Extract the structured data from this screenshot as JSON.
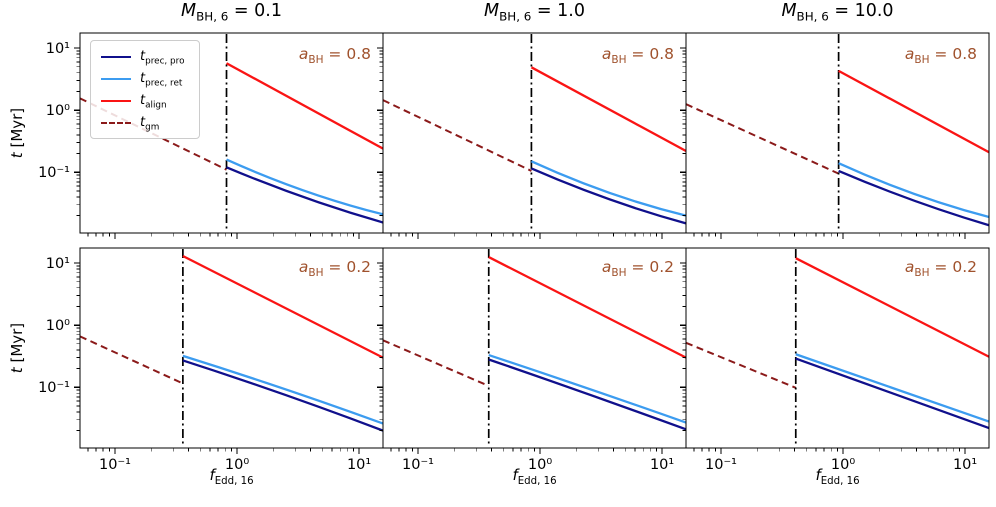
{
  "chart_data": {
    "type": "line",
    "grid": false,
    "scale": "log-log",
    "xlim": [
      0.0517,
      15.7
    ],
    "ylim": [
      0.0105,
      17.5
    ],
    "xlabel": {
      "var": "f",
      "sub": "Edd, 16"
    },
    "ylabel": {
      "var": "t",
      "rest": " [Myr]"
    },
    "x_ticks": [
      {
        "v": 0.1,
        "label": "10⁻¹"
      },
      {
        "v": 1,
        "label": "10⁰"
      },
      {
        "v": 10,
        "label": "10¹"
      }
    ],
    "y_ticks": [
      {
        "v": 10,
        "label": "10¹"
      },
      {
        "v": 1,
        "label": "10⁰"
      },
      {
        "v": 0.1,
        "label": "10⁻¹"
      }
    ],
    "colors": {
      "prec_pro": "#10108c",
      "prec_ret": "#3c9cf0",
      "align": "#fa1414",
      "gm": "#8b1a1a",
      "guide": "#000000",
      "annotation": "#a0522d"
    },
    "panels": [
      {
        "row": 0,
        "col": 0,
        "title": {
          "var": "M",
          "sub": "BH, 6",
          "rest": " = 0.1"
        },
        "annotation": {
          "var": "a",
          "sub": "BH",
          "rest": " = 0.8"
        },
        "guide_x": 0.82,
        "series": {
          "gm": {
            "x": [
              0.0517,
              0.82
            ],
            "y": [
              1.55,
              0.11
            ]
          },
          "align": {
            "x": [
              0.82,
              15.7
            ],
            "y": [
              5.7,
              0.24
            ]
          },
          "prec_ret": {
            "x": [
              0.82,
              3.6,
              15.7
            ],
            "y": [
              0.16,
              0.05,
              0.021
            ]
          },
          "prec_pro": {
            "x": [
              0.82,
              3.6,
              15.7
            ],
            "y": [
              0.12,
              0.039,
              0.0155
            ]
          }
        }
      },
      {
        "row": 0,
        "col": 1,
        "title": {
          "var": "M",
          "sub": "BH, 6",
          "rest": " = 1.0"
        },
        "annotation": {
          "var": "a",
          "sub": "BH",
          "rest": " = 0.8"
        },
        "guide_x": 0.85,
        "series": {
          "gm": {
            "x": [
              0.0517,
              0.85
            ],
            "y": [
              1.45,
              0.105
            ]
          },
          "align": {
            "x": [
              0.85,
              15.7
            ],
            "y": [
              4.9,
              0.22
            ]
          },
          "prec_ret": {
            "x": [
              0.85,
              3.65,
              15.7
            ],
            "y": [
              0.15,
              0.047,
              0.02
            ]
          },
          "prec_pro": {
            "x": [
              0.85,
              3.65,
              15.7
            ],
            "y": [
              0.115,
              0.037,
              0.015
            ]
          }
        }
      },
      {
        "row": 0,
        "col": 2,
        "title": {
          "var": "M",
          "sub": "BH, 6",
          "rest": " = 10.0"
        },
        "annotation": {
          "var": "a",
          "sub": "BH",
          "rest": " = 0.8"
        },
        "guide_x": 0.92,
        "series": {
          "gm": {
            "x": [
              0.0517,
              0.92
            ],
            "y": [
              1.25,
              0.095
            ]
          },
          "align": {
            "x": [
              0.92,
              15.7
            ],
            "y": [
              4.3,
              0.21
            ]
          },
          "prec_ret": {
            "x": [
              0.92,
              3.8,
              15.7
            ],
            "y": [
              0.14,
              0.045,
              0.019
            ]
          },
          "prec_pro": {
            "x": [
              0.92,
              3.8,
              15.7
            ],
            "y": [
              0.105,
              0.035,
              0.014
            ]
          }
        }
      },
      {
        "row": 1,
        "col": 0,
        "title": null,
        "annotation": {
          "var": "a",
          "sub": "BH",
          "rest": " = 0.2"
        },
        "guide_x": 0.36,
        "series": {
          "gm": {
            "x": [
              0.0517,
              0.36
            ],
            "y": [
              0.66,
              0.115
            ]
          },
          "align": {
            "x": [
              0.36,
              15.7
            ],
            "y": [
              13.0,
              0.3
            ]
          },
          "prec_ret": {
            "x": [
              0.36,
              2.4,
              15.7
            ],
            "y": [
              0.32,
              0.095,
              0.026
            ]
          },
          "prec_pro": {
            "x": [
              0.36,
              2.4,
              15.7
            ],
            "y": [
              0.27,
              0.077,
              0.02
            ]
          }
        }
      },
      {
        "row": 1,
        "col": 1,
        "title": null,
        "annotation": {
          "var": "a",
          "sub": "BH",
          "rest": " = 0.2"
        },
        "guide_x": 0.38,
        "series": {
          "gm": {
            "x": [
              0.0517,
              0.38
            ],
            "y": [
              0.57,
              0.105
            ]
          },
          "align": {
            "x": [
              0.38,
              15.7
            ],
            "y": [
              12.5,
              0.3
            ]
          },
          "prec_ret": {
            "x": [
              0.38,
              2.45,
              15.7
            ],
            "y": [
              0.33,
              0.096,
              0.027
            ]
          },
          "prec_pro": {
            "x": [
              0.38,
              2.45,
              15.7
            ],
            "y": [
              0.28,
              0.078,
              0.021
            ]
          }
        }
      },
      {
        "row": 1,
        "col": 2,
        "title": null,
        "annotation": {
          "var": "a",
          "sub": "BH",
          "rest": " = 0.2"
        },
        "guide_x": 0.41,
        "series": {
          "gm": {
            "x": [
              0.0517,
              0.41
            ],
            "y": [
              0.52,
              0.098
            ]
          },
          "align": {
            "x": [
              0.41,
              15.7
            ],
            "y": [
              12.0,
              0.31
            ]
          },
          "prec_ret": {
            "x": [
              0.41,
              2.55,
              15.7
            ],
            "y": [
              0.34,
              0.098,
              0.028
            ]
          },
          "prec_pro": {
            "x": [
              0.41,
              2.55,
              15.7
            ],
            "y": [
              0.29,
              0.08,
              0.022
            ]
          }
        }
      }
    ]
  },
  "legend": {
    "items": [
      {
        "key": "prec_pro",
        "var": "t",
        "sub": "prec, pro",
        "color": "#10108c",
        "dash": "solid"
      },
      {
        "key": "prec_ret",
        "var": "t",
        "sub": "prec, ret",
        "color": "#3c9cf0",
        "dash": "solid"
      },
      {
        "key": "align",
        "var": "t",
        "sub": "align",
        "color": "#fa1414",
        "dash": "solid"
      },
      {
        "key": "gm",
        "var": "t",
        "sub": "gm",
        "color": "#8b1a1a",
        "dash": "dashed"
      }
    ]
  }
}
